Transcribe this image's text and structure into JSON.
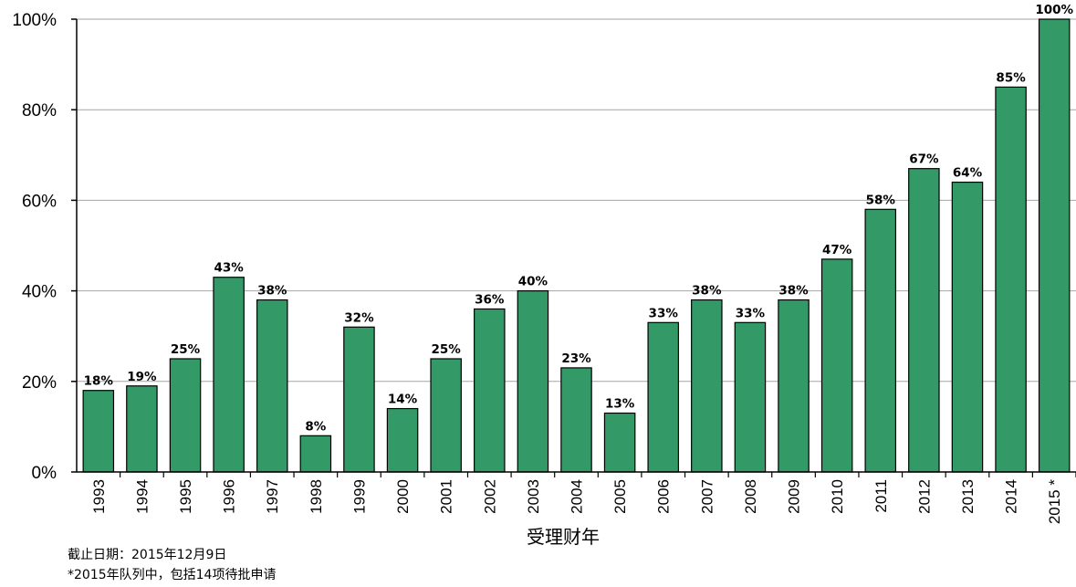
{
  "chart_data": {
    "type": "bar",
    "categories": [
      "1993",
      "1994",
      "1995",
      "1996",
      "1997",
      "1998",
      "1999",
      "2000",
      "2001",
      "2002",
      "2003",
      "2004",
      "2005",
      "2006",
      "2007",
      "2008",
      "2009",
      "2010",
      "2011",
      "2012",
      "2013",
      "2014",
      "2015 *"
    ],
    "values": [
      18,
      19,
      25,
      43,
      38,
      8,
      32,
      14,
      25,
      36,
      40,
      23,
      13,
      33,
      38,
      33,
      38,
      47,
      58,
      67,
      64,
      85,
      100
    ],
    "data_labels": [
      "18%",
      "19%",
      "25%",
      "43%",
      "38%",
      "8%",
      "32%",
      "14%",
      "25%",
      "36%",
      "40%",
      "23%",
      "13%",
      "33%",
      "38%",
      "33%",
      "38%",
      "47%",
      "58%",
      "67%",
      "64%",
      "85%",
      "100%"
    ],
    "xlabel": "受理财年",
    "ylim": [
      0,
      100
    ],
    "yticks": [
      "0%",
      "20%",
      "40%",
      "60%",
      "80%",
      "100%"
    ],
    "grid": true,
    "bar_color": "#339966"
  },
  "notes": {
    "line1": "截止日期：2015年12月9日",
    "line2": "*2015年队列中，包括14项待批申请"
  }
}
